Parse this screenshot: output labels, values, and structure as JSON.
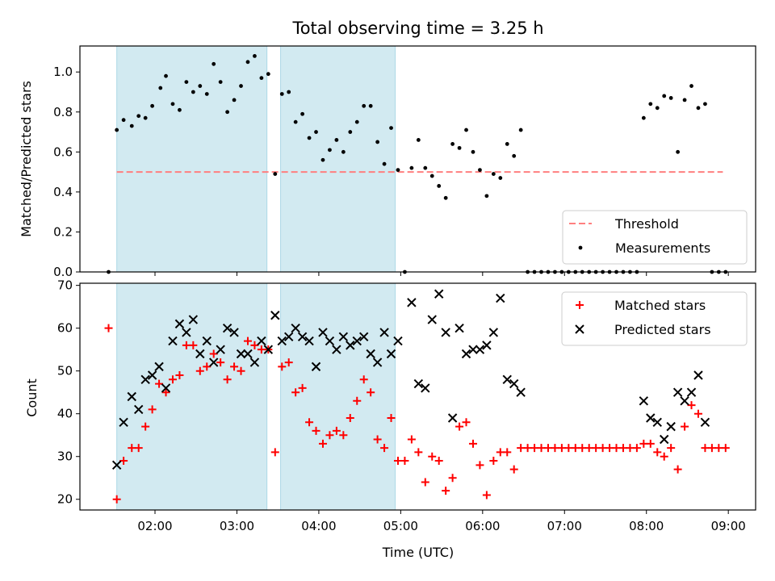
{
  "title": "Total observing time = 3.25 h",
  "xlabel": "Time (UTC)",
  "x_ticks": [
    "02:00",
    "03:00",
    "04:00",
    "05:00",
    "06:00",
    "07:00",
    "08:00",
    "09:00"
  ],
  "colors": {
    "shade": "#add8e6",
    "threshold": "#ff7f7f",
    "measurements": "#000000",
    "matched": "#ff0000",
    "predicted": "#000000"
  },
  "chart_data": [
    {
      "type": "scatter",
      "ylabel": "Matched/Predicted stars",
      "ylim": [
        0,
        1.13
      ],
      "y_ticks": [
        "0.0",
        "0.2",
        "0.4",
        "0.6",
        "0.8",
        "1.0"
      ],
      "xlim": [
        "01:05",
        "09:20"
      ],
      "shaded_intervals": [
        [
          "01:32",
          "03:22"
        ],
        [
          "03:32",
          "04:56"
        ]
      ],
      "threshold": {
        "name": "Threshold",
        "y": 0.5,
        "x_range": [
          "01:32",
          "08:56"
        ]
      },
      "legend_position": "lower-right",
      "series": [
        {
          "name": "Measurements",
          "points": [
            [
              "01:26",
              0.0
            ],
            [
              "01:32",
              0.71
            ],
            [
              "01:37",
              0.76
            ],
            [
              "01:43",
              0.73
            ],
            [
              "01:48",
              0.78
            ],
            [
              "01:53",
              0.77
            ],
            [
              "01:58",
              0.83
            ],
            [
              "02:04",
              0.92
            ],
            [
              "02:08",
              0.98
            ],
            [
              "02:13",
              0.84
            ],
            [
              "02:18",
              0.81
            ],
            [
              "02:23",
              0.95
            ],
            [
              "02:28",
              0.9
            ],
            [
              "02:33",
              0.93
            ],
            [
              "02:38",
              0.89
            ],
            [
              "02:43",
              1.04
            ],
            [
              "02:48",
              0.95
            ],
            [
              "02:53",
              0.8
            ],
            [
              "02:58",
              0.86
            ],
            [
              "03:03",
              0.93
            ],
            [
              "03:08",
              1.05
            ],
            [
              "03:13",
              1.08
            ],
            [
              "03:18",
              0.97
            ],
            [
              "03:23",
              0.99
            ],
            [
              "03:28",
              0.49
            ],
            [
              "03:33",
              0.89
            ],
            [
              "03:38",
              0.9
            ],
            [
              "03:43",
              0.75
            ],
            [
              "03:48",
              0.79
            ],
            [
              "03:53",
              0.67
            ],
            [
              "03:58",
              0.7
            ],
            [
              "04:03",
              0.56
            ],
            [
              "04:08",
              0.61
            ],
            [
              "04:13",
              0.66
            ],
            [
              "04:18",
              0.6
            ],
            [
              "04:23",
              0.7
            ],
            [
              "04:28",
              0.75
            ],
            [
              "04:33",
              0.83
            ],
            [
              "04:38",
              0.83
            ],
            [
              "04:43",
              0.65
            ],
            [
              "04:48",
              0.54
            ],
            [
              "04:53",
              0.72
            ],
            [
              "04:58",
              0.51
            ],
            [
              "05:03",
              0.0
            ],
            [
              "05:08",
              0.52
            ],
            [
              "05:13",
              0.66
            ],
            [
              "05:18",
              0.52
            ],
            [
              "05:23",
              0.48
            ],
            [
              "05:28",
              0.43
            ],
            [
              "05:33",
              0.37
            ],
            [
              "05:38",
              0.64
            ],
            [
              "05:43",
              0.62
            ],
            [
              "05:48",
              0.71
            ],
            [
              "05:53",
              0.6
            ],
            [
              "05:58",
              0.51
            ],
            [
              "06:03",
              0.38
            ],
            [
              "06:08",
              0.49
            ],
            [
              "06:13",
              0.47
            ],
            [
              "06:18",
              0.64
            ],
            [
              "06:23",
              0.58
            ],
            [
              "06:28",
              0.71
            ],
            [
              "06:33",
              0.0
            ],
            [
              "06:38",
              0.0
            ],
            [
              "06:43",
              0.0
            ],
            [
              "06:48",
              0.0
            ],
            [
              "06:53",
              0.0
            ],
            [
              "06:58",
              0.0
            ],
            [
              "07:03",
              0.0
            ],
            [
              "07:08",
              0.0
            ],
            [
              "07:13",
              0.0
            ],
            [
              "07:18",
              0.0
            ],
            [
              "07:23",
              0.0
            ],
            [
              "07:28",
              0.0
            ],
            [
              "07:33",
              0.0
            ],
            [
              "07:38",
              0.0
            ],
            [
              "07:43",
              0.0
            ],
            [
              "07:48",
              0.0
            ],
            [
              "07:53",
              0.0
            ],
            [
              "07:58",
              0.77
            ],
            [
              "08:03",
              0.84
            ],
            [
              "08:08",
              0.82
            ],
            [
              "08:13",
              0.88
            ],
            [
              "08:18",
              0.87
            ],
            [
              "08:23",
              0.6
            ],
            [
              "08:28",
              0.86
            ],
            [
              "08:33",
              0.93
            ],
            [
              "08:38",
              0.82
            ],
            [
              "08:43",
              0.84
            ],
            [
              "08:48",
              0.0
            ],
            [
              "08:53",
              0.0
            ],
            [
              "08:58",
              0.0
            ]
          ]
        }
      ]
    },
    {
      "type": "scatter",
      "ylabel": "Count",
      "ylim": [
        17.5,
        70.5
      ],
      "y_ticks": [
        "20",
        "30",
        "40",
        "50",
        "60",
        "70"
      ],
      "xlim": [
        "01:05",
        "09:20"
      ],
      "shaded_intervals": [
        [
          "01:32",
          "03:22"
        ],
        [
          "03:32",
          "04:56"
        ]
      ],
      "legend_position": "upper-right",
      "series": [
        {
          "name": "Matched stars",
          "marker": "+",
          "points": [
            [
              "01:26",
              60
            ],
            [
              "01:32",
              20
            ],
            [
              "01:37",
              29
            ],
            [
              "01:43",
              32
            ],
            [
              "01:48",
              32
            ],
            [
              "01:53",
              37
            ],
            [
              "01:58",
              41
            ],
            [
              "02:03",
              47
            ],
            [
              "02:08",
              45
            ],
            [
              "02:13",
              48
            ],
            [
              "02:18",
              49
            ],
            [
              "02:23",
              56
            ],
            [
              "02:28",
              56
            ],
            [
              "02:33",
              50
            ],
            [
              "02:38",
              51
            ],
            [
              "02:43",
              54
            ],
            [
              "02:48",
              52
            ],
            [
              "02:53",
              48
            ],
            [
              "02:58",
              51
            ],
            [
              "03:03",
              50
            ],
            [
              "03:08",
              57
            ],
            [
              "03:13",
              56
            ],
            [
              "03:18",
              55
            ],
            [
              "03:23",
              55
            ],
            [
              "03:28",
              31
            ],
            [
              "03:33",
              51
            ],
            [
              "03:38",
              52
            ],
            [
              "03:43",
              45
            ],
            [
              "03:48",
              46
            ],
            [
              "03:53",
              38
            ],
            [
              "03:58",
              36
            ],
            [
              "04:03",
              33
            ],
            [
              "04:08",
              35
            ],
            [
              "04:13",
              36
            ],
            [
              "04:18",
              35
            ],
            [
              "04:23",
              39
            ],
            [
              "04:28",
              43
            ],
            [
              "04:33",
              48
            ],
            [
              "04:38",
              45
            ],
            [
              "04:43",
              34
            ],
            [
              "04:48",
              32
            ],
            [
              "04:53",
              39
            ],
            [
              "04:58",
              29
            ],
            [
              "05:03",
              29
            ],
            [
              "05:08",
              34
            ],
            [
              "05:13",
              31
            ],
            [
              "05:18",
              24
            ],
            [
              "05:23",
              30
            ],
            [
              "05:28",
              29
            ],
            [
              "05:33",
              22
            ],
            [
              "05:38",
              25
            ],
            [
              "05:43",
              37
            ],
            [
              "05:48",
              38
            ],
            [
              "05:53",
              33
            ],
            [
              "05:58",
              28
            ],
            [
              "06:03",
              21
            ],
            [
              "06:08",
              29
            ],
            [
              "06:13",
              31
            ],
            [
              "06:18",
              31
            ],
            [
              "06:23",
              27
            ],
            [
              "06:28",
              32
            ],
            [
              "06:33",
              32
            ],
            [
              "06:38",
              32
            ],
            [
              "06:43",
              32
            ],
            [
              "06:48",
              32
            ],
            [
              "06:53",
              32
            ],
            [
              "06:58",
              32
            ],
            [
              "07:03",
              32
            ],
            [
              "07:08",
              32
            ],
            [
              "07:13",
              32
            ],
            [
              "07:18",
              32
            ],
            [
              "07:23",
              32
            ],
            [
              "07:28",
              32
            ],
            [
              "07:33",
              32
            ],
            [
              "07:38",
              32
            ],
            [
              "07:43",
              32
            ],
            [
              "07:48",
              32
            ],
            [
              "07:53",
              32
            ],
            [
              "07:58",
              33
            ],
            [
              "08:03",
              33
            ],
            [
              "08:08",
              31
            ],
            [
              "08:13",
              30
            ],
            [
              "08:18",
              32
            ],
            [
              "08:23",
              27
            ],
            [
              "08:28",
              37
            ],
            [
              "08:33",
              42
            ],
            [
              "08:38",
              40
            ],
            [
              "08:43",
              32
            ],
            [
              "08:48",
              32
            ],
            [
              "08:53",
              32
            ],
            [
              "08:58",
              32
            ]
          ]
        },
        {
          "name": "Predicted stars",
          "marker": "x",
          "points": [
            [
              "01:32",
              28
            ],
            [
              "01:37",
              38
            ],
            [
              "01:43",
              44
            ],
            [
              "01:48",
              41
            ],
            [
              "01:53",
              48
            ],
            [
              "01:58",
              49
            ],
            [
              "02:03",
              51
            ],
            [
              "02:08",
              46
            ],
            [
              "02:13",
              57
            ],
            [
              "02:18",
              61
            ],
            [
              "02:23",
              59
            ],
            [
              "02:28",
              62
            ],
            [
              "02:33",
              54
            ],
            [
              "02:38",
              57
            ],
            [
              "02:43",
              52
            ],
            [
              "02:48",
              55
            ],
            [
              "02:53",
              60
            ],
            [
              "02:58",
              59
            ],
            [
              "03:03",
              54
            ],
            [
              "03:08",
              54
            ],
            [
              "03:13",
              52
            ],
            [
              "03:18",
              57
            ],
            [
              "03:23",
              55
            ],
            [
              "03:28",
              63
            ],
            [
              "03:33",
              57
            ],
            [
              "03:38",
              58
            ],
            [
              "03:43",
              60
            ],
            [
              "03:48",
              58
            ],
            [
              "03:53",
              57
            ],
            [
              "03:58",
              51
            ],
            [
              "04:03",
              59
            ],
            [
              "04:08",
              57
            ],
            [
              "04:13",
              55
            ],
            [
              "04:18",
              58
            ],
            [
              "04:23",
              56
            ],
            [
              "04:28",
              57
            ],
            [
              "04:33",
              58
            ],
            [
              "04:38",
              54
            ],
            [
              "04:43",
              52
            ],
            [
              "04:48",
              59
            ],
            [
              "04:53",
              54
            ],
            [
              "04:58",
              57
            ],
            [
              "05:08",
              66
            ],
            [
              "05:13",
              47
            ],
            [
              "05:18",
              46
            ],
            [
              "05:23",
              62
            ],
            [
              "05:28",
              68
            ],
            [
              "05:33",
              59
            ],
            [
              "05:38",
              39
            ],
            [
              "05:43",
              60
            ],
            [
              "05:48",
              54
            ],
            [
              "05:53",
              55
            ],
            [
              "05:58",
              55
            ],
            [
              "06:03",
              56
            ],
            [
              "06:08",
              59
            ],
            [
              "06:13",
              67
            ],
            [
              "06:18",
              48
            ],
            [
              "06:23",
              47
            ],
            [
              "06:28",
              45
            ],
            [
              "07:58",
              43
            ],
            [
              "08:03",
              39
            ],
            [
              "08:08",
              38
            ],
            [
              "08:13",
              34
            ],
            [
              "08:18",
              37
            ],
            [
              "08:23",
              45
            ],
            [
              "08:28",
              43
            ],
            [
              "08:33",
              45
            ],
            [
              "08:38",
              49
            ],
            [
              "08:43",
              38
            ]
          ]
        }
      ]
    }
  ]
}
